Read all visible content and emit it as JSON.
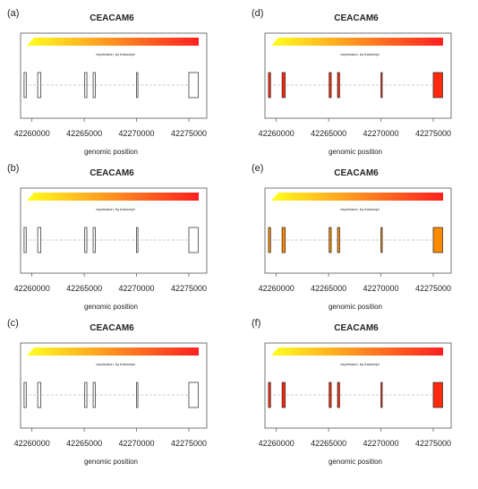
{
  "chart_data": [
    {
      "panel_label": "(a)",
      "type": "gene-structure",
      "title": "CEACAM6",
      "legend_caption": "expression, by transcript",
      "xlabel": "genomic position",
      "xticks": [
        42260000,
        42265000,
        42270000,
        42275000
      ],
      "xlim": [
        42259000,
        42276200
      ],
      "fill_color": "#ffffff",
      "exons": [
        [
          42259250,
          42259450
        ],
        [
          42260550,
          42260850
        ],
        [
          42265050,
          42265250
        ],
        [
          42265850,
          42266050
        ],
        [
          42270000,
          42270120
        ],
        [
          42275000,
          42275900
        ]
      ]
    },
    {
      "panel_label": "(b)",
      "type": "gene-structure",
      "title": "CEACAM6",
      "legend_caption": "expression, by transcript",
      "xlabel": "genomic position",
      "xticks": [
        42260000,
        42265000,
        42270000,
        42275000
      ],
      "xlim": [
        42259000,
        42276200
      ],
      "fill_color": "#ffffff",
      "exons": [
        [
          42259250,
          42259450
        ],
        [
          42260550,
          42260850
        ],
        [
          42265050,
          42265250
        ],
        [
          42265850,
          42266050
        ],
        [
          42270000,
          42270120
        ],
        [
          42275000,
          42275900
        ]
      ]
    },
    {
      "panel_label": "(c)",
      "type": "gene-structure",
      "title": "CEACAM6",
      "legend_caption": "expression, by transcript",
      "xlabel": "genomic position",
      "xticks": [
        42260000,
        42265000,
        42270000,
        42275000
      ],
      "xlim": [
        42259000,
        42276200
      ],
      "fill_color": "#ffffff",
      "exons": [
        [
          42259250,
          42259450
        ],
        [
          42260550,
          42260850
        ],
        [
          42265050,
          42265250
        ],
        [
          42265850,
          42266050
        ],
        [
          42270000,
          42270120
        ],
        [
          42275000,
          42275900
        ]
      ]
    },
    {
      "panel_label": "(d)",
      "type": "gene-structure",
      "title": "CEACAM6",
      "legend_caption": "expression, by transcript",
      "xlabel": "genomic position",
      "xticks": [
        42260000,
        42265000,
        42270000,
        42275000
      ],
      "xlim": [
        42259000,
        42276200
      ],
      "fill_color": "#ff2a0c",
      "exons": [
        [
          42259250,
          42259450
        ],
        [
          42260550,
          42260850
        ],
        [
          42265050,
          42265250
        ],
        [
          42265850,
          42266050
        ],
        [
          42270000,
          42270120
        ],
        [
          42275000,
          42275900
        ]
      ]
    },
    {
      "panel_label": "(e)",
      "type": "gene-structure",
      "title": "CEACAM6",
      "legend_caption": "expression, by transcript",
      "xlabel": "genomic position",
      "xticks": [
        42260000,
        42265000,
        42270000,
        42275000
      ],
      "xlim": [
        42259000,
        42276200
      ],
      "fill_color": "#ff8a00",
      "exons": [
        [
          42259250,
          42259450
        ],
        [
          42260550,
          42260850
        ],
        [
          42265050,
          42265250
        ],
        [
          42265850,
          42266050
        ],
        [
          42270000,
          42270120
        ],
        [
          42275000,
          42275900
        ]
      ]
    },
    {
      "panel_label": "(f)",
      "type": "gene-structure",
      "title": "CEACAM6",
      "legend_caption": "expression, by transcript",
      "xlabel": "genomic position",
      "xticks": [
        42260000,
        42265000,
        42270000,
        42275000
      ],
      "xlim": [
        42259000,
        42276200
      ],
      "fill_color": "#ff2a0c",
      "exons": [
        [
          42259250,
          42259450
        ],
        [
          42260550,
          42260850
        ],
        [
          42265050,
          42265250
        ],
        [
          42265850,
          42266050
        ],
        [
          42270000,
          42270120
        ],
        [
          42275000,
          42275900
        ]
      ]
    }
  ],
  "style": {
    "gradient_colors": [
      "#ffff20",
      "#ff2020"
    ],
    "frame_color": "#555555",
    "intron_color": "#bbbbbb",
    "text_color": "#222222"
  }
}
